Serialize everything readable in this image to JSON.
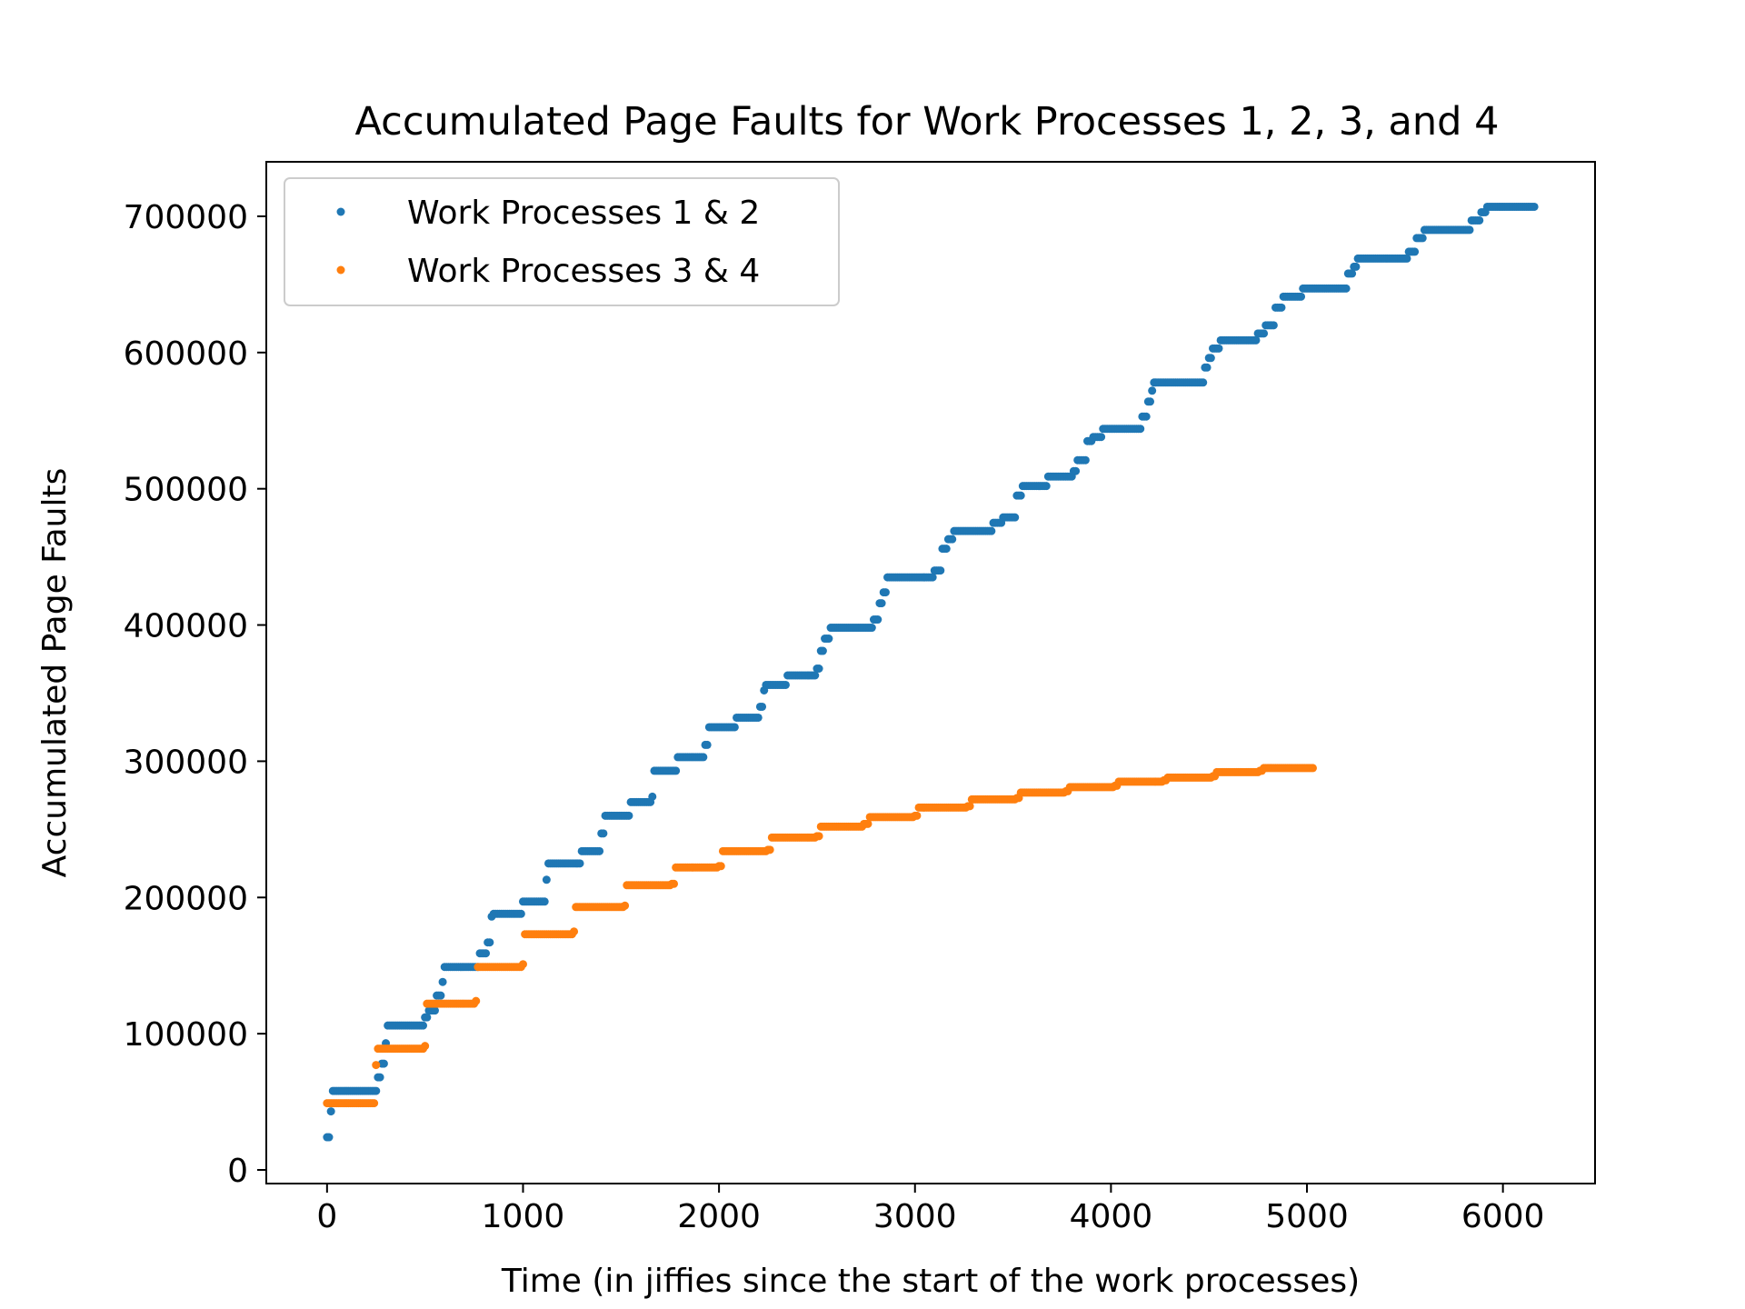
{
  "chart_data": {
    "type": "scatter",
    "title": "Accumulated Page Faults for Work Processes 1, 2, 3, and 4",
    "xlabel": "Time (in jiffies since the start of the work processes)",
    "ylabel": "Accumulated Page Faults",
    "xlim": [
      -310,
      6470
    ],
    "ylim": [
      -10000,
      740000
    ],
    "xticks": [
      0,
      1000,
      2000,
      3000,
      4000,
      5000,
      6000
    ],
    "yticks": [
      0,
      100000,
      200000,
      300000,
      400000,
      500000,
      600000,
      700000
    ],
    "legend_position": "upper left",
    "grid": false,
    "series": [
      {
        "name": "Work Processes 1 & 2",
        "color": "#1f77b4",
        "steps": [
          [
            0,
            24000
          ],
          [
            20,
            43000
          ],
          [
            30,
            58000
          ],
          [
            260,
            68000
          ],
          [
            280,
            78000
          ],
          [
            300,
            93000
          ],
          [
            310,
            106000
          ],
          [
            500,
            112000
          ],
          [
            520,
            117000
          ],
          [
            560,
            128000
          ],
          [
            590,
            138000
          ],
          [
            600,
            149000
          ],
          [
            780,
            159000
          ],
          [
            820,
            167000
          ],
          [
            840,
            186000
          ],
          [
            850,
            188000
          ],
          [
            1000,
            197000
          ],
          [
            1120,
            213000
          ],
          [
            1130,
            225000
          ],
          [
            1300,
            234000
          ],
          [
            1400,
            247000
          ],
          [
            1420,
            260000
          ],
          [
            1550,
            270000
          ],
          [
            1660,
            274000
          ],
          [
            1670,
            293000
          ],
          [
            1790,
            303000
          ],
          [
            1930,
            312000
          ],
          [
            1950,
            325000
          ],
          [
            2090,
            332000
          ],
          [
            2210,
            340000
          ],
          [
            2230,
            352000
          ],
          [
            2240,
            356000
          ],
          [
            2350,
            363000
          ],
          [
            2500,
            368000
          ],
          [
            2520,
            381000
          ],
          [
            2540,
            390000
          ],
          [
            2570,
            398000
          ],
          [
            2790,
            404000
          ],
          [
            2820,
            416000
          ],
          [
            2840,
            424000
          ],
          [
            2860,
            435000
          ],
          [
            3100,
            440000
          ],
          [
            3140,
            456000
          ],
          [
            3170,
            463000
          ],
          [
            3200,
            469000
          ],
          [
            3400,
            475000
          ],
          [
            3450,
            479000
          ],
          [
            3520,
            495000
          ],
          [
            3550,
            502000
          ],
          [
            3680,
            509000
          ],
          [
            3810,
            513000
          ],
          [
            3830,
            521000
          ],
          [
            3880,
            535000
          ],
          [
            3910,
            538000
          ],
          [
            3960,
            544000
          ],
          [
            4160,
            553000
          ],
          [
            4190,
            564000
          ],
          [
            4210,
            572000
          ],
          [
            4220,
            578000
          ],
          [
            4480,
            589000
          ],
          [
            4500,
            596000
          ],
          [
            4520,
            603000
          ],
          [
            4560,
            609000
          ],
          [
            4750,
            614000
          ],
          [
            4790,
            620000
          ],
          [
            4840,
            633000
          ],
          [
            4880,
            641000
          ],
          [
            4980,
            647000
          ],
          [
            5210,
            658000
          ],
          [
            5240,
            663000
          ],
          [
            5260,
            669000
          ],
          [
            5520,
            674000
          ],
          [
            5560,
            684000
          ],
          [
            5600,
            690000
          ],
          [
            5840,
            697000
          ],
          [
            5890,
            703000
          ],
          [
            5920,
            707000
          ],
          [
            6160,
            707000
          ]
        ]
      },
      {
        "name": "Work Processes 3 & 4",
        "color": "#ff7f0e",
        "steps": [
          [
            0,
            49000
          ],
          [
            230,
            49000
          ],
          [
            250,
            77000
          ],
          [
            260,
            89000
          ],
          [
            500,
            91000
          ],
          [
            510,
            122000
          ],
          [
            760,
            124000
          ],
          [
            770,
            149000
          ],
          [
            1000,
            151000
          ],
          [
            1010,
            173000
          ],
          [
            1260,
            175000
          ],
          [
            1270,
            193000
          ],
          [
            1520,
            194000
          ],
          [
            1530,
            209000
          ],
          [
            1760,
            210000
          ],
          [
            1780,
            222000
          ],
          [
            2000,
            223000
          ],
          [
            2020,
            234000
          ],
          [
            2250,
            235000
          ],
          [
            2270,
            244000
          ],
          [
            2500,
            245000
          ],
          [
            2520,
            252000
          ],
          [
            2740,
            254000
          ],
          [
            2770,
            259000
          ],
          [
            3000,
            260000
          ],
          [
            3020,
            266000
          ],
          [
            3270,
            267000
          ],
          [
            3290,
            272000
          ],
          [
            3520,
            273000
          ],
          [
            3540,
            277000
          ],
          [
            3770,
            278000
          ],
          [
            3790,
            281000
          ],
          [
            4020,
            282000
          ],
          [
            4040,
            285000
          ],
          [
            4270,
            286000
          ],
          [
            4290,
            288000
          ],
          [
            4520,
            289000
          ],
          [
            4540,
            292000
          ],
          [
            4760,
            293000
          ],
          [
            4780,
            295000
          ],
          [
            5030,
            295000
          ]
        ]
      }
    ]
  }
}
